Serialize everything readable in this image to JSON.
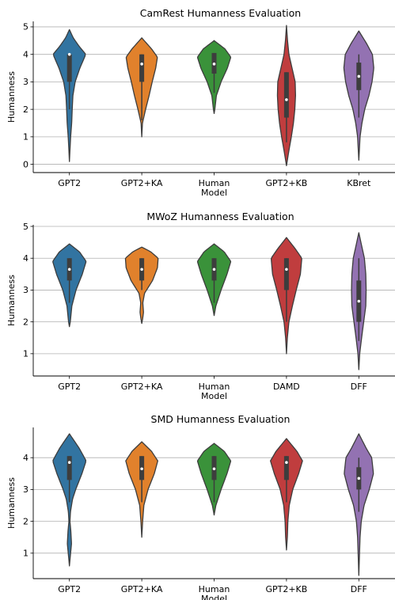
{
  "colors": {
    "blue": "#3274a1",
    "orange": "#e1812c",
    "green": "#3a923a",
    "red": "#c03d3e",
    "purple": "#9372b2",
    "edge": "#3d3d3d",
    "grid": "#b0b0b0"
  },
  "chart_data": [
    {
      "type": "violin",
      "title": "CamRest Humanness Evaluation",
      "xlabel": "Model",
      "ylabel": "Humanness",
      "ylim": [
        -0.3,
        5.2
      ],
      "yticks": [
        0,
        1,
        2,
        3,
        4,
        5
      ],
      "grid": "y",
      "categories": [
        "GPT2",
        "GPT2+KA",
        "Human",
        "GPT2+KB",
        "KBret"
      ],
      "series": [
        {
          "color": "blue",
          "range": [
            0.1,
            4.9
          ],
          "median": 4.0,
          "q1": 3.0,
          "q3": 4.0,
          "whisker": [
            2.0,
            4.0
          ],
          "profile": [
            [
              0.1,
              0.0
            ],
            [
              0.5,
              0.03
            ],
            [
              1.0,
              0.07
            ],
            [
              1.5,
              0.13
            ],
            [
              2.0,
              0.16
            ],
            [
              2.5,
              0.2
            ],
            [
              3.0,
              0.33
            ],
            [
              3.5,
              0.6
            ],
            [
              4.0,
              0.94
            ],
            [
              4.3,
              0.55
            ],
            [
              4.6,
              0.22
            ],
            [
              4.9,
              0.0
            ]
          ]
        },
        {
          "color": "orange",
          "range": [
            1.0,
            4.6
          ],
          "median": 3.65,
          "q1": 3.0,
          "q3": 4.0,
          "whisker": [
            1.6,
            4.0
          ],
          "profile": [
            [
              1.0,
              0.0
            ],
            [
              1.5,
              0.04
            ],
            [
              2.0,
              0.22
            ],
            [
              2.5,
              0.42
            ],
            [
              3.0,
              0.6
            ],
            [
              3.5,
              0.8
            ],
            [
              3.9,
              0.9
            ],
            [
              4.2,
              0.56
            ],
            [
              4.6,
              0.0
            ]
          ]
        },
        {
          "color": "green",
          "range": [
            1.85,
            4.5
          ],
          "median": 3.65,
          "q1": 3.3,
          "q3": 4.05,
          "whisker": [
            2.6,
            4.05
          ],
          "profile": [
            [
              1.85,
              0.0
            ],
            [
              2.0,
              0.04
            ],
            [
              2.5,
              0.13
            ],
            [
              3.0,
              0.4
            ],
            [
              3.5,
              0.76
            ],
            [
              3.9,
              0.96
            ],
            [
              4.2,
              0.62
            ],
            [
              4.5,
              0.0
            ]
          ]
        },
        {
          "color": "red",
          "range": [
            -0.05,
            5.05
          ],
          "median": 2.35,
          "q1": 1.7,
          "q3": 3.35,
          "whisker": [
            0.8,
            3.35
          ],
          "profile": [
            [
              -0.05,
              0.0
            ],
            [
              0.5,
              0.14
            ],
            [
              1.0,
              0.28
            ],
            [
              1.5,
              0.4
            ],
            [
              2.0,
              0.48
            ],
            [
              2.5,
              0.52
            ],
            [
              3.0,
              0.5
            ],
            [
              3.5,
              0.32
            ],
            [
              4.0,
              0.14
            ],
            [
              4.5,
              0.06
            ],
            [
              5.05,
              0.0
            ]
          ]
        },
        {
          "color": "purple",
          "range": [
            0.15,
            4.85
          ],
          "median": 3.2,
          "q1": 2.7,
          "q3": 3.7,
          "whisker": [
            1.7,
            4.0
          ],
          "profile": [
            [
              0.15,
              0.0
            ],
            [
              0.5,
              0.03
            ],
            [
              1.0,
              0.07
            ],
            [
              1.5,
              0.18
            ],
            [
              2.0,
              0.34
            ],
            [
              2.5,
              0.58
            ],
            [
              3.0,
              0.76
            ],
            [
              3.5,
              0.86
            ],
            [
              4.0,
              0.78
            ],
            [
              4.4,
              0.44
            ],
            [
              4.85,
              0.0
            ]
          ]
        }
      ]
    },
    {
      "type": "violin",
      "title": "MWoZ Humanness Evaluation",
      "xlabel": "Model",
      "ylabel": "Humanness",
      "ylim": [
        0.3,
        5.05
      ],
      "yticks": [
        1,
        2,
        3,
        4,
        5
      ],
      "grid": "y",
      "categories": [
        "GPT2",
        "GPT2+KA",
        "Human",
        "DAMD",
        "DFF"
      ],
      "series": [
        {
          "color": "blue",
          "range": [
            1.85,
            4.45
          ],
          "median": 3.65,
          "q1": 3.3,
          "q3": 4.0,
          "whisker": [
            2.6,
            4.0
          ],
          "profile": [
            [
              1.85,
              0.0
            ],
            [
              2.0,
              0.05
            ],
            [
              2.5,
              0.14
            ],
            [
              3.0,
              0.38
            ],
            [
              3.5,
              0.74
            ],
            [
              3.9,
              0.96
            ],
            [
              4.2,
              0.58
            ],
            [
              4.45,
              0.0
            ]
          ]
        },
        {
          "color": "orange",
          "range": [
            1.95,
            4.35
          ],
          "median": 3.65,
          "q1": 3.3,
          "q3": 4.0,
          "whisker": [
            3.0,
            4.0
          ],
          "profile": [
            [
              1.95,
              0.0
            ],
            [
              2.1,
              0.05
            ],
            [
              2.3,
              0.1
            ],
            [
              2.6,
              0.06
            ],
            [
              2.9,
              0.16
            ],
            [
              3.3,
              0.62
            ],
            [
              3.7,
              0.9
            ],
            [
              4.0,
              0.94
            ],
            [
              4.2,
              0.52
            ],
            [
              4.35,
              0.0
            ]
          ]
        },
        {
          "color": "green",
          "range": [
            2.2,
            4.45
          ],
          "median": 3.65,
          "q1": 3.3,
          "q3": 4.0,
          "whisker": [
            2.6,
            4.0
          ],
          "profile": [
            [
              2.2,
              0.0
            ],
            [
              2.5,
              0.1
            ],
            [
              3.0,
              0.4
            ],
            [
              3.5,
              0.74
            ],
            [
              3.9,
              0.96
            ],
            [
              4.2,
              0.58
            ],
            [
              4.45,
              0.0
            ]
          ]
        },
        {
          "color": "red",
          "range": [
            1.0,
            4.65
          ],
          "median": 3.65,
          "q1": 3.0,
          "q3": 4.0,
          "whisker": [
            2.0,
            4.0
          ],
          "profile": [
            [
              1.0,
              0.0
            ],
            [
              1.5,
              0.05
            ],
            [
              2.0,
              0.14
            ],
            [
              2.5,
              0.34
            ],
            [
              3.0,
              0.56
            ],
            [
              3.5,
              0.8
            ],
            [
              4.0,
              0.88
            ],
            [
              4.3,
              0.5
            ],
            [
              4.65,
              0.0
            ]
          ]
        },
        {
          "color": "purple",
          "range": [
            0.5,
            4.8
          ],
          "median": 2.65,
          "q1": 2.0,
          "q3": 3.3,
          "whisker": [
            1.4,
            4.0
          ],
          "profile": [
            [
              0.5,
              0.0
            ],
            [
              1.0,
              0.05
            ],
            [
              1.5,
              0.16
            ],
            [
              2.0,
              0.28
            ],
            [
              2.5,
              0.4
            ],
            [
              3.0,
              0.42
            ],
            [
              3.5,
              0.4
            ],
            [
              4.0,
              0.32
            ],
            [
              4.4,
              0.16
            ],
            [
              4.8,
              0.0
            ]
          ]
        }
      ]
    },
    {
      "type": "violin",
      "title": "SMD Humanness Evaluation",
      "xlabel": "Model",
      "ylabel": "Humanness",
      "ylim": [
        0.2,
        4.95
      ],
      "yticks": [
        1,
        2,
        3,
        4
      ],
      "grid": "y",
      "categories": [
        "GPT2",
        "GPT2+KA",
        "Human",
        "GPT2+KB",
        "DFF"
      ],
      "series": [
        {
          "color": "blue",
          "range": [
            0.6,
            4.75
          ],
          "median": 3.85,
          "q1": 3.3,
          "q3": 4.05,
          "whisker": [
            2.6,
            4.05
          ],
          "profile": [
            [
              0.6,
              0.0
            ],
            [
              0.9,
              0.05
            ],
            [
              1.3,
              0.12
            ],
            [
              1.7,
              0.08
            ],
            [
              2.0,
              0.03
            ],
            [
              2.3,
              0.06
            ],
            [
              2.7,
              0.18
            ],
            [
              3.0,
              0.36
            ],
            [
              3.5,
              0.72
            ],
            [
              3.9,
              0.96
            ],
            [
              4.3,
              0.56
            ],
            [
              4.75,
              0.0
            ]
          ]
        },
        {
          "color": "orange",
          "range": [
            1.5,
            4.5
          ],
          "median": 3.65,
          "q1": 3.3,
          "q3": 4.05,
          "whisker": [
            2.6,
            4.05
          ],
          "profile": [
            [
              1.5,
              0.0
            ],
            [
              2.0,
              0.05
            ],
            [
              2.5,
              0.12
            ],
            [
              3.0,
              0.36
            ],
            [
              3.5,
              0.72
            ],
            [
              3.9,
              0.92
            ],
            [
              4.2,
              0.56
            ],
            [
              4.5,
              0.0
            ]
          ]
        },
        {
          "color": "green",
          "range": [
            2.2,
            4.45
          ],
          "median": 3.65,
          "q1": 3.3,
          "q3": 4.05,
          "whisker": [
            2.6,
            4.05
          ],
          "profile": [
            [
              2.2,
              0.0
            ],
            [
              2.5,
              0.1
            ],
            [
              3.0,
              0.4
            ],
            [
              3.5,
              0.74
            ],
            [
              3.9,
              0.96
            ],
            [
              4.2,
              0.58
            ],
            [
              4.45,
              0.0
            ]
          ]
        },
        {
          "color": "red",
          "range": [
            1.1,
            4.6
          ],
          "median": 3.85,
          "q1": 3.3,
          "q3": 4.05,
          "whisker": [
            2.6,
            4.05
          ],
          "profile": [
            [
              1.1,
              0.0
            ],
            [
              1.5,
              0.05
            ],
            [
              2.0,
              0.08
            ],
            [
              2.5,
              0.16
            ],
            [
              3.0,
              0.36
            ],
            [
              3.5,
              0.7
            ],
            [
              3.9,
              0.92
            ],
            [
              4.2,
              0.6
            ],
            [
              4.6,
              0.0
            ]
          ]
        },
        {
          "color": "purple",
          "range": [
            0.3,
            4.75
          ],
          "median": 3.35,
          "q1": 3.0,
          "q3": 3.7,
          "whisker": [
            2.3,
            4.0
          ],
          "profile": [
            [
              0.3,
              0.0
            ],
            [
              1.0,
              0.04
            ],
            [
              1.5,
              0.07
            ],
            [
              2.0,
              0.14
            ],
            [
              2.5,
              0.3
            ],
            [
              3.0,
              0.6
            ],
            [
              3.5,
              0.84
            ],
            [
              4.0,
              0.74
            ],
            [
              4.3,
              0.42
            ],
            [
              4.75,
              0.0
            ]
          ]
        }
      ]
    }
  ]
}
